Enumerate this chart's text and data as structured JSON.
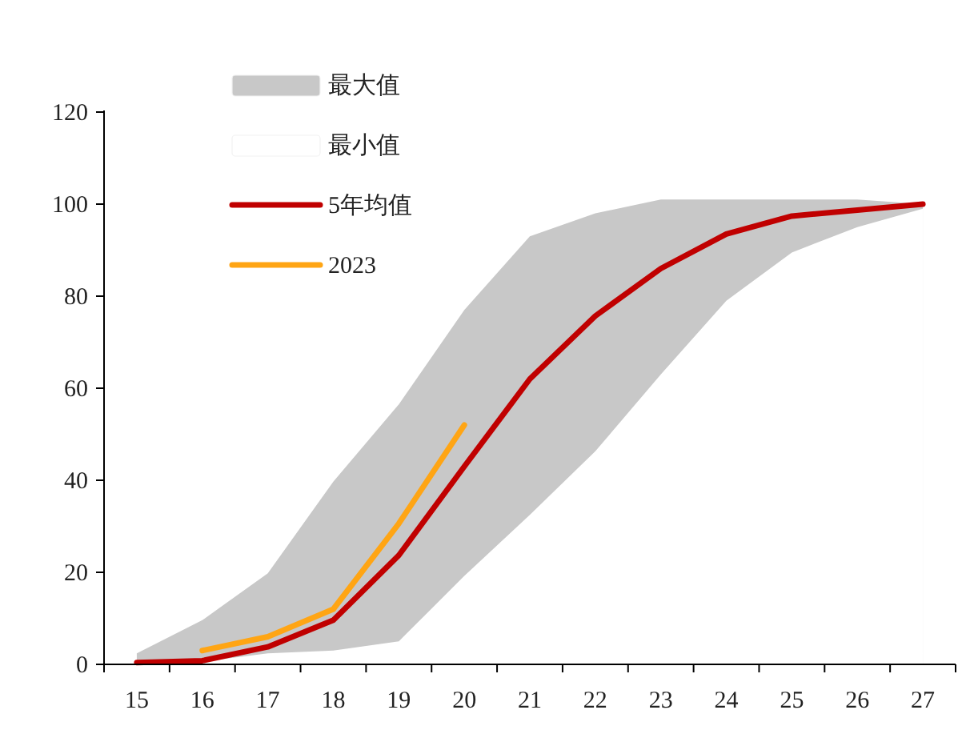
{
  "chart_data": {
    "type": "line",
    "categories": [
      "15",
      "16",
      "17",
      "18",
      "19",
      "20",
      "21",
      "22",
      "23",
      "24",
      "25",
      "26",
      "27"
    ],
    "series": [
      {
        "name": "最大值",
        "type": "area",
        "color": "#c8c8c8",
        "values": [
          2.4,
          9.6,
          19.8,
          39.7,
          56.5,
          77,
          93,
          98,
          101,
          101,
          101,
          101,
          100
        ]
      },
      {
        "name": "最小值",
        "type": "area",
        "color": "#ffffff",
        "values": [
          0,
          0.6,
          2.4,
          3,
          5,
          19.2,
          32.5,
          46.3,
          63,
          79,
          89.5,
          95,
          99
        ]
      },
      {
        "name": "5年均值",
        "color": "#c00000",
        "values": [
          0.4,
          0.8,
          3.8,
          9.6,
          23.7,
          43,
          62,
          75.7,
          86,
          93.5,
          97.4,
          98.7,
          100
        ]
      },
      {
        "name": "2023",
        "color": "#ffa514",
        "values": [
          null,
          3,
          6,
          12,
          30.6,
          52,
          null,
          null,
          null,
          null,
          null,
          null,
          null
        ]
      }
    ],
    "ylim": [
      0,
      120
    ],
    "yticks": [
      0,
      20,
      40,
      60,
      80,
      100,
      120
    ],
    "legend": "top left"
  }
}
